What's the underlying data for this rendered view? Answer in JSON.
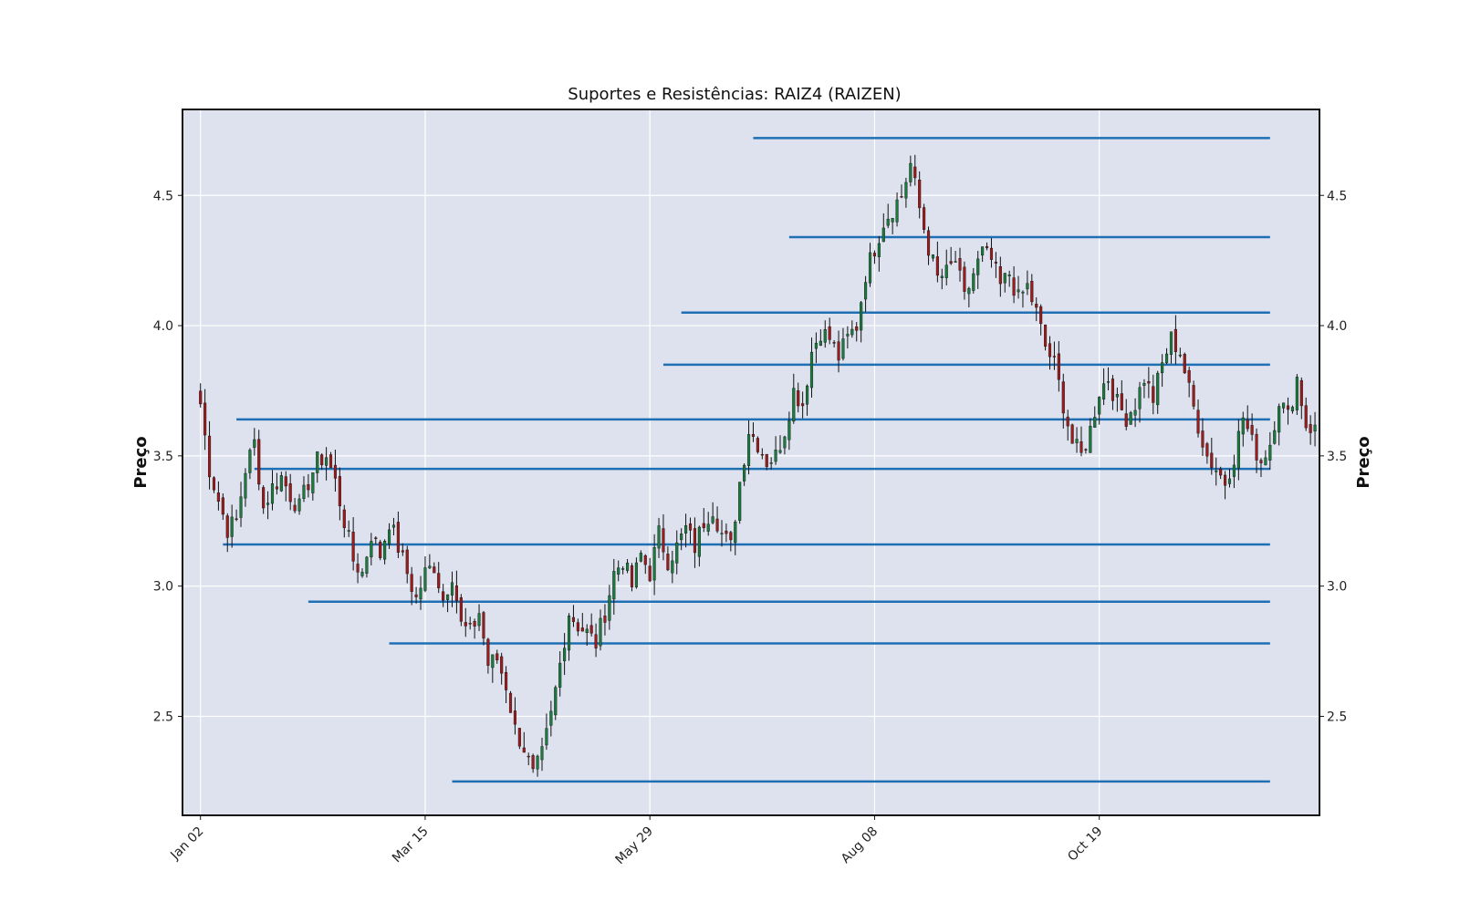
{
  "chart_data": {
    "type": "candlestick",
    "title": "Suportes e Resistências: RAIZ4 (RAIZEN)",
    "ylabel_left": "Preço",
    "ylabel_right": "Preço",
    "ylim": [
      2.12,
      4.83
    ],
    "yticks": [
      "2.5",
      "3.0",
      "3.5",
      "4.0",
      "4.5"
    ],
    "ytick_values": [
      2.5,
      3.0,
      3.5,
      4.0,
      4.5
    ],
    "xlim": [
      -4,
      249
    ],
    "xticks": [
      {
        "label": "Jan 02",
        "index": 0
      },
      {
        "label": "Mar 15",
        "index": 50
      },
      {
        "label": "May 29",
        "index": 100
      },
      {
        "label": "Aug 08",
        "index": 150
      },
      {
        "label": "Oct 19",
        "index": 200
      }
    ],
    "grid": true,
    "background_color": "#dde2ee",
    "up_color": "#1b7a3e",
    "down_color": "#9b1c1c",
    "level_color": "#1f6fb5",
    "anchors": [
      [
        0,
        3.7
      ],
      [
        2,
        3.45
      ],
      [
        4,
        3.33
      ],
      [
        6,
        3.22
      ],
      [
        8,
        3.25
      ],
      [
        10,
        3.45
      ],
      [
        12,
        3.55
      ],
      [
        14,
        3.3
      ],
      [
        16,
        3.38
      ],
      [
        18,
        3.42
      ],
      [
        20,
        3.35
      ],
      [
        22,
        3.3
      ],
      [
        24,
        3.4
      ],
      [
        26,
        3.48
      ],
      [
        28,
        3.5
      ],
      [
        30,
        3.4
      ],
      [
        32,
        3.25
      ],
      [
        34,
        3.1
      ],
      [
        36,
        3.05
      ],
      [
        38,
        3.2
      ],
      [
        40,
        3.12
      ],
      [
        42,
        3.25
      ],
      [
        44,
        3.15
      ],
      [
        46,
        3.05
      ],
      [
        48,
        2.95
      ],
      [
        50,
        3.05
      ],
      [
        52,
        3.08
      ],
      [
        54,
        2.95
      ],
      [
        56,
        3.05
      ],
      [
        58,
        2.85
      ],
      [
        60,
        2.82
      ],
      [
        62,
        2.9
      ],
      [
        64,
        2.7
      ],
      [
        66,
        2.72
      ],
      [
        68,
        2.62
      ],
      [
        70,
        2.45
      ],
      [
        72,
        2.38
      ],
      [
        74,
        2.27
      ],
      [
        76,
        2.35
      ],
      [
        78,
        2.5
      ],
      [
        80,
        2.7
      ],
      [
        82,
        2.9
      ],
      [
        84,
        2.85
      ],
      [
        86,
        2.82
      ],
      [
        88,
        2.78
      ],
      [
        90,
        2.9
      ],
      [
        92,
        3.05
      ],
      [
        94,
        3.1
      ],
      [
        96,
        3.0
      ],
      [
        98,
        3.12
      ],
      [
        100,
        3.05
      ],
      [
        102,
        3.2
      ],
      [
        104,
        3.1
      ],
      [
        106,
        3.15
      ],
      [
        108,
        3.22
      ],
      [
        110,
        3.15
      ],
      [
        112,
        3.25
      ],
      [
        114,
        3.3
      ],
      [
        116,
        3.2
      ],
      [
        118,
        3.15
      ],
      [
        120,
        3.4
      ],
      [
        122,
        3.6
      ],
      [
        124,
        3.55
      ],
      [
        126,
        3.48
      ],
      [
        128,
        3.5
      ],
      [
        130,
        3.6
      ],
      [
        132,
        3.75
      ],
      [
        134,
        3.7
      ],
      [
        136,
        3.9
      ],
      [
        138,
        3.98
      ],
      [
        140,
        3.95
      ],
      [
        142,
        3.88
      ],
      [
        144,
        3.95
      ],
      [
        146,
        4.0
      ],
      [
        148,
        4.2
      ],
      [
        150,
        4.3
      ],
      [
        152,
        4.4
      ],
      [
        154,
        4.45
      ],
      [
        156,
        4.5
      ],
      [
        158,
        4.62
      ],
      [
        160,
        4.45
      ],
      [
        162,
        4.3
      ],
      [
        164,
        4.18
      ],
      [
        166,
        4.2
      ],
      [
        168,
        4.25
      ],
      [
        170,
        4.1
      ],
      [
        172,
        4.2
      ],
      [
        174,
        4.28
      ],
      [
        176,
        4.25
      ],
      [
        178,
        4.15
      ],
      [
        180,
        4.2
      ],
      [
        182,
        4.1
      ],
      [
        184,
        4.15
      ],
      [
        186,
        4.05
      ],
      [
        188,
        3.92
      ],
      [
        190,
        3.85
      ],
      [
        192,
        3.7
      ],
      [
        194,
        3.55
      ],
      [
        196,
        3.5
      ],
      [
        198,
        3.6
      ],
      [
        200,
        3.75
      ],
      [
        202,
        3.8
      ],
      [
        204,
        3.7
      ],
      [
        206,
        3.65
      ],
      [
        208,
        3.7
      ],
      [
        210,
        3.8
      ],
      [
        212,
        3.72
      ],
      [
        214,
        3.85
      ],
      [
        216,
        3.95
      ],
      [
        218,
        3.9
      ],
      [
        220,
        3.75
      ],
      [
        222,
        3.62
      ],
      [
        224,
        3.5
      ],
      [
        226,
        3.45
      ],
      [
        228,
        3.4
      ],
      [
        230,
        3.5
      ],
      [
        232,
        3.65
      ],
      [
        234,
        3.55
      ],
      [
        236,
        3.48
      ],
      [
        238,
        3.55
      ],
      [
        240,
        3.72
      ],
      [
        242,
        3.65
      ],
      [
        244,
        3.8
      ],
      [
        246,
        3.62
      ],
      [
        248,
        3.6
      ]
    ],
    "levels": [
      {
        "value": 4.72,
        "start": 123
      },
      {
        "value": 4.34,
        "start": 131
      },
      {
        "value": 4.05,
        "start": 107
      },
      {
        "value": 3.85,
        "start": 103
      },
      {
        "value": 3.64,
        "start": 8
      },
      {
        "value": 3.45,
        "start": 12
      },
      {
        "value": 3.16,
        "start": 5
      },
      {
        "value": 2.94,
        "start": 24
      },
      {
        "value": 2.78,
        "start": 42
      },
      {
        "value": 2.25,
        "start": 56
      }
    ],
    "level_end": 238
  }
}
